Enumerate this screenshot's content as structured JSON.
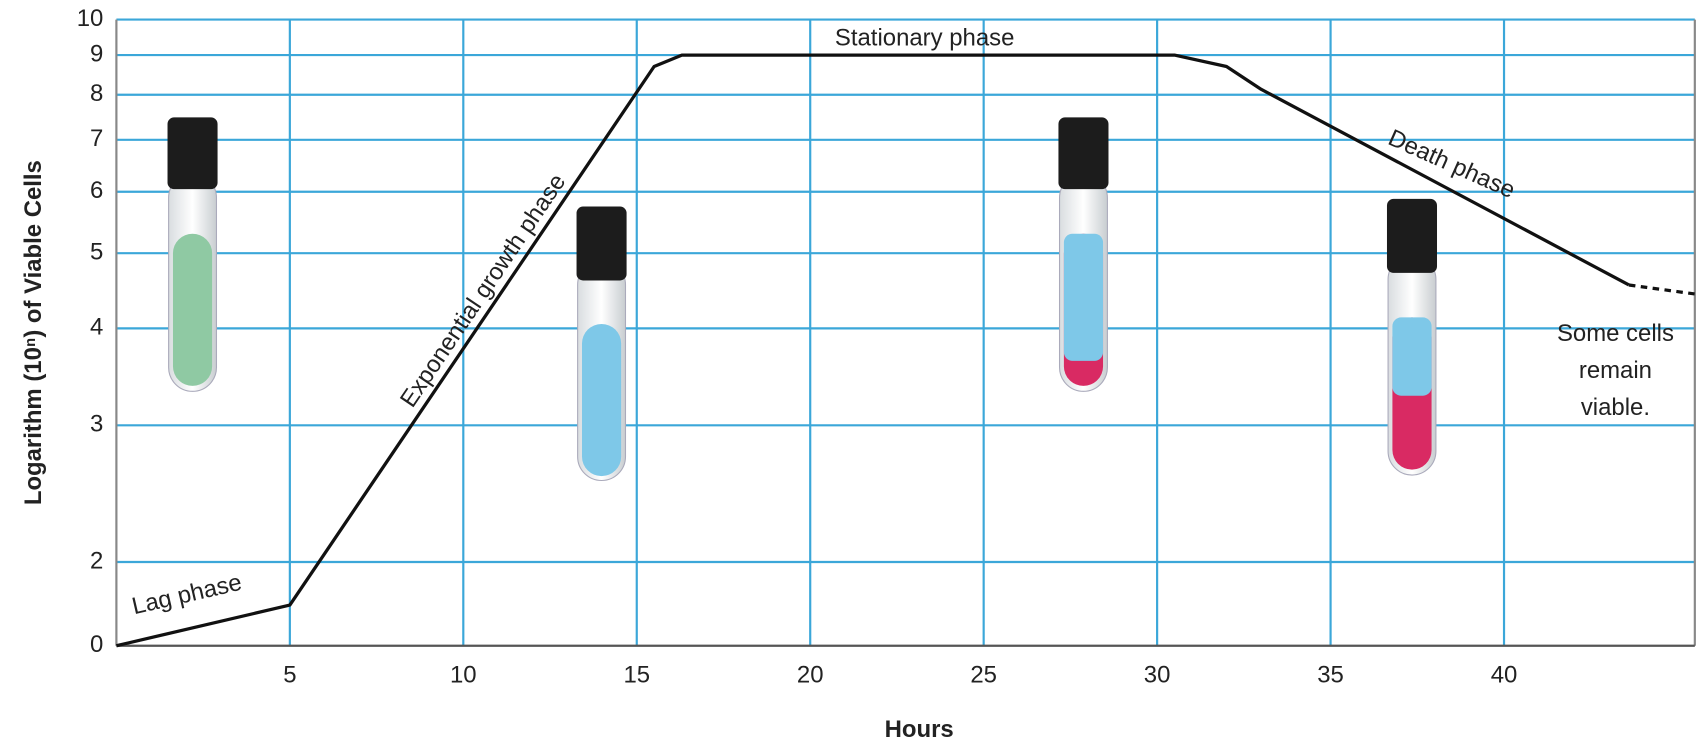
{
  "chart_data": {
    "type": "line",
    "xlabel": "Hours",
    "ylabel": "Logarithm (10ⁿ) of Viable Cells",
    "x": [
      0,
      5,
      15.5,
      16.3,
      30.5,
      32,
      33,
      43.6,
      45.5
    ],
    "series": [
      {
        "color": "#111111",
        "dashed": false,
        "values": [
          1.56,
          1.76,
          8.7,
          9,
          9,
          8.7,
          8.13,
          4.55,
          null
        ]
      },
      {
        "color": "#111111",
        "dashed": true,
        "values": [
          null,
          null,
          null,
          null,
          null,
          null,
          null,
          4.55,
          4.43
        ]
      }
    ],
    "xlim": [
      0,
      45.5
    ],
    "xticks": [
      5,
      10,
      15,
      20,
      25,
      30,
      35,
      40
    ],
    "ylim": [
      1.56,
      10
    ],
    "ylog": true,
    "yticks": [
      2,
      3,
      4,
      5,
      6,
      7,
      8,
      9,
      10
    ],
    "y_origin_label": "0",
    "grid": true,
    "grid_color": "#3ba7d9",
    "annotations": [
      "Lag phase",
      "Exponential growth phase",
      "Stationary phase",
      "Death phase",
      "Some cells",
      "remain",
      "viable."
    ]
  }
}
